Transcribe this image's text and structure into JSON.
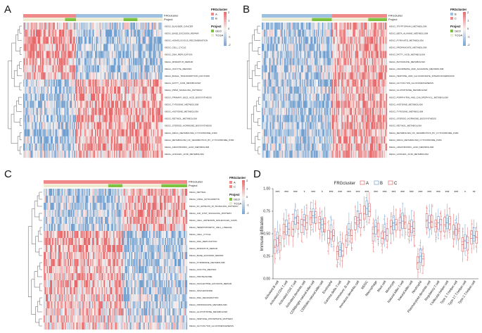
{
  "colors": {
    "high": "#e8686a",
    "mid": "#f6f2f0",
    "low": "#6f9fd0",
    "clusterA": "#f08a8a",
    "clusterB": "#9dbfe0",
    "clusterC": "#f08a8a",
    "geo": "#7fc241",
    "tcga": "#ecebd0"
  },
  "panels": [
    {
      "label": "A",
      "annotation_names": [
        "FRGcluster",
        "Project"
      ],
      "legend": {
        "cluster_title": "FRGcluster",
        "cluster_items": [
          "A",
          "B"
        ],
        "project_title": "Project",
        "project_items": [
          "GEO",
          "TCGA"
        ],
        "scale": [
          "2",
          "1",
          "0",
          "-1",
          "-2"
        ]
      },
      "rows": [
        "KEGG_BLADDER_CANCER",
        "KEGG_BASE_EXCISION_REPAIR",
        "KEGG_HOMOLOGOUS_RECOMBINATION",
        "KEGG_CELL_CYCLE",
        "KEGG_DNA_REPLICATION",
        "KEGG_MISMATCH_REPAIR",
        "KEGG_OOCYTE_MEIOSIS",
        "KEGG_BASAL_TRANSCRIPTION_FACTORS",
        "KEGG_FATTY_ACID_METABOLISM",
        "KEGG_PPAR_SIGNALING_PATHWAY",
        "KEGG_PRIMARY_BILE_ACID_BIOSYNTHESIS",
        "KEGG_TYROSINE_METABOLISM",
        "KEGG_HISTIDINE_METABOLISM",
        "KEGG_RETINOL_METABOLISM",
        "KEGG_STEROID_HORMONE_BIOSYNTHESIS",
        "KEGG_DRUG_METABOLISM_CYTOCHROME_P450",
        "KEGG_METABOLISM_OF_XENOBIOTICS_BY_CYTOCHROME_P450",
        "KEGG_ARACHIDONIC_ACID_METABOLISM",
        "KEGG_LINOLEIC_ACID_METABOLISM"
      ]
    },
    {
      "label": "B",
      "annotation_names": [
        "FRGcluster",
        "Project"
      ],
      "legend": {
        "cluster_title": "FRGcluster",
        "cluster_items": [
          "B",
          "C"
        ],
        "project_title": "Project",
        "project_items": [
          "GEO",
          "TCGA"
        ],
        "scale": [
          "2",
          "1",
          "0",
          "-1",
          "-2"
        ]
      },
      "rows": [
        "KEGG_TRYPTOPHAN_METABOLISM",
        "KEGG_BETA_ALANINE_METABOLISM",
        "KEGG_PYRUVATE_METABOLISM",
        "KEGG_PROPANOATE_METABOLISM",
        "KEGG_FATTY_ACID_METABOLISM",
        "KEGG_BUTANOATE_METABOLISM",
        "KEGG_ASCORBATE_AND_ALDARATE_METABOLISM",
        "KEGG_PENTOSE_AND_GLUCURONATE_INTERCONVERSIONS",
        "KEGG_GLYCOLYSIS_GLUCONEOGENESIS",
        "KEGG_GLUTATHIONE_METABOLISM",
        "KEGG_PORPHYRIN_AND_CHLOROPHYLL_METABOLISM",
        "KEGG_HISTIDINE_METABOLISM",
        "KEGG_TYROSINE_METABOLISM",
        "KEGG_STEROID_HORMONE_BIOSYNTHESIS",
        "KEGG_RETINOL_METABOLISM",
        "KEGG_METABOLISM_OF_XENOBIOTICS_BY_CYTOCHROME_P450",
        "KEGG_DRUG_METABOLISM_CYTOCHROME_P450",
        "KEGG_ARACHIDONIC_ACID_METABOLISM",
        "KEGG_LINOLEIC_ACID_METABOLISM"
      ]
    },
    {
      "label": "C",
      "annotation_names": [
        "FRGcluster",
        "Project"
      ],
      "legend": {
        "cluster_title": "FRGcluster",
        "cluster_items": [
          "A",
          "C"
        ],
        "project_title": "Project",
        "project_items": [
          "GEO",
          "TCGA"
        ],
        "scale": [
          "2",
          "1",
          "0",
          "-1",
          "-2"
        ]
      },
      "rows": [
        "KEGG_RETINAL",
        "KEGG_VIRAL_MYOCARDITIS",
        "KEGG_FC_EPSILON_RI_SIGNALING_PATHWAY",
        "KEGG_JAK_STAT_SIGNALING_PATHWAY",
        "KEGG_CELL_ADHESION_MOLECULES_CAMS",
        "KEGG_HEMATOPOIETIC_CELL_LINEAGE",
        "KEGG_CELL_CYCLE",
        "KEGG_DNA_REPLICATION",
        "KEGG_MISMATCH_REPAIR",
        "KEGG_BASE_EXCISION_REPAIR",
        "KEGG_PYRIMIDINE_METABOLISM",
        "KEGG_OOCYTE_MEIOSIS",
        "KEGG_PROTEASOME",
        "KEGG_NUCLEOTIDE_EXCISION_REPAIR",
        "KEGG_SPLICEOSOME",
        "KEGG_RNA_DEGRADATION",
        "KEGG_PROPANOATE_METABOLISM",
        "KEGG_GLUTATHIONE_METABOLISM",
        "KEGG_PENTOSE_PHOSPHATE_PATHWAY",
        "KEGG_GLYCOLYSIS_GLUCONEOGENESIS"
      ]
    }
  ],
  "panel_d": {
    "label": "D",
    "legend_title": "FRGcluster",
    "legend_items": [
      "A",
      "B",
      "C"
    ],
    "chart_data": {
      "type": "box",
      "title": "",
      "ylabel": "Immune infiltration",
      "ylim": [
        0.0,
        1.0
      ],
      "yticks": [
        "0.00",
        "0.25",
        "0.50",
        "0.75",
        "1.00"
      ],
      "categories": [
        "Activated.B.cell",
        "Activated.CD4.T.cell",
        "Activated.CD8.T.cell",
        "Activated.dendritic.cell",
        "CD56bright.natural.killer.cell",
        "CD56dim.natural.killer.cell",
        "Eosinophil",
        "Gamma.delta.T.cell",
        "Immature..B.cell",
        "Immature.dendritic.cell",
        "MDSC",
        "Macrophage",
        "Mast.cell",
        "Monocyte",
        "Natural.killer.T.cell",
        "Natural.killer.cell",
        "Neutrophil",
        "Plasmacytoid.dendritic.cell",
        "Regulatory.T.cell",
        "T.follicular.helper.cell",
        "Type.1.T.helper.cell",
        "Type.17.T.helper.cell",
        "Type.2.T.helper.cell"
      ],
      "significance": [
        "***",
        "***",
        "***",
        "*",
        "***",
        "*",
        "***",
        "***",
        "***",
        "***",
        "***",
        "***",
        "***",
        "***",
        "***",
        "***",
        "***",
        "***",
        "***",
        "***",
        "***",
        "*",
        "**"
      ],
      "series": [
        {
          "name": "A",
          "medians": [
            0.35,
            0.52,
            0.55,
            0.6,
            0.68,
            0.62,
            0.45,
            0.3,
            0.42,
            0.62,
            0.72,
            0.5,
            0.45,
            0.58,
            0.62,
            0.55,
            0.18,
            0.65,
            0.58,
            0.6,
            0.52,
            0.38,
            0.45
          ]
        },
        {
          "name": "B",
          "medians": [
            0.45,
            0.58,
            0.68,
            0.65,
            0.7,
            0.6,
            0.52,
            0.32,
            0.55,
            0.68,
            0.78,
            0.58,
            0.52,
            0.62,
            0.64,
            0.58,
            0.25,
            0.62,
            0.62,
            0.62,
            0.55,
            0.42,
            0.48
          ]
        },
        {
          "name": "C",
          "medians": [
            0.4,
            0.55,
            0.62,
            0.62,
            0.68,
            0.61,
            0.48,
            0.31,
            0.48,
            0.65,
            0.75,
            0.54,
            0.48,
            0.6,
            0.63,
            0.56,
            0.22,
            0.63,
            0.6,
            0.61,
            0.53,
            0.4,
            0.46
          ]
        }
      ]
    }
  }
}
